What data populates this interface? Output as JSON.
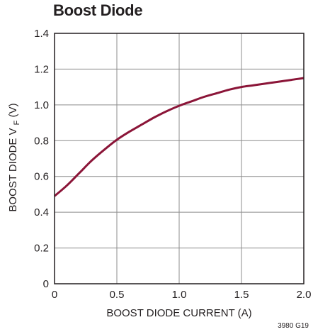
{
  "title": "Boost Diode",
  "figure_code": "3980 G19",
  "colors": {
    "curve": "#8b1538",
    "grid": "#8c8c8c",
    "frame": "#231f20"
  },
  "chart_data": {
    "type": "line",
    "title": "Boost Diode",
    "xlabel": "BOOST DIODE CURRENT (A)",
    "ylabel_main": "BOOST DIODE V",
    "ylabel_sub": "F",
    "ylabel_unit": " (V)",
    "xlim": [
      0,
      2.0
    ],
    "ylim": [
      0,
      1.4
    ],
    "xticks": [
      0,
      0.5,
      1.0,
      1.5,
      2.0
    ],
    "xtick_labels": [
      "0",
      "0.5",
      "1.0",
      "1.5",
      "2.0"
    ],
    "yticks": [
      0,
      0.2,
      0.4,
      0.6,
      0.8,
      1.0,
      1.2,
      1.4
    ],
    "ytick_labels": [
      "0",
      "0.2",
      "0.4",
      "0.6",
      "0.8",
      "1.0",
      "1.2",
      "1.4"
    ],
    "grid": true,
    "series": [
      {
        "x": [
          0,
          0.1,
          0.2,
          0.3,
          0.4,
          0.5,
          0.6,
          0.7,
          0.8,
          0.9,
          1.0,
          1.1,
          1.2,
          1.3,
          1.4,
          1.5,
          1.6,
          1.7,
          1.8,
          1.9,
          2.0
        ],
        "y": [
          0.49,
          0.55,
          0.62,
          0.69,
          0.75,
          0.805,
          0.85,
          0.89,
          0.93,
          0.965,
          0.995,
          1.02,
          1.045,
          1.065,
          1.085,
          1.1,
          1.11,
          1.12,
          1.13,
          1.14,
          1.15
        ]
      }
    ]
  }
}
